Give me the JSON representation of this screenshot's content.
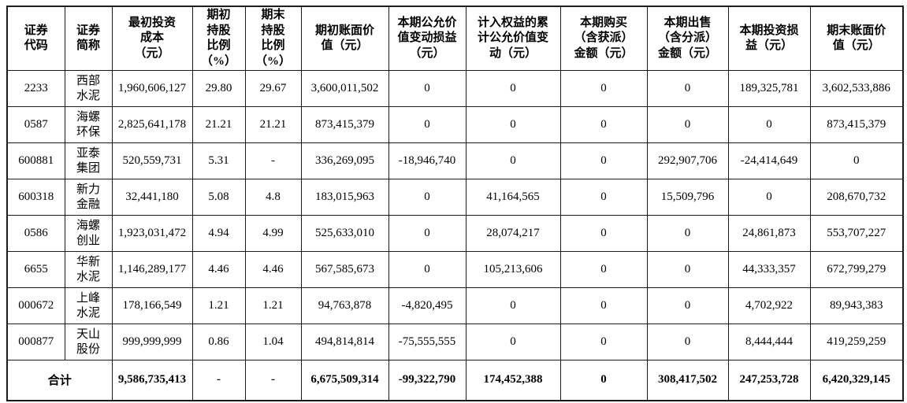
{
  "table": {
    "columns": [
      {
        "label": "证券\n代码"
      },
      {
        "label": "证券\n简称"
      },
      {
        "label": "最初投资\n成本\n（元）"
      },
      {
        "label": "期初\n持股\n比例\n（%）"
      },
      {
        "label": "期末\n持股\n比例\n（%）"
      },
      {
        "label": "期初账面价\n值（元）"
      },
      {
        "label": "本期公允价\n值变动损益\n（元）"
      },
      {
        "label": "计入权益的累\n计公允价值变\n动（元）"
      },
      {
        "label": "本期购买\n（含获派）\n金额（元）"
      },
      {
        "label": "本期出售\n（含分派）\n金额（元）"
      },
      {
        "label": "本期投资损\n益（元）"
      },
      {
        "label": "期末账面价\n值（元）"
      }
    ],
    "rows": [
      {
        "code": "2233",
        "name": "西部\n水泥",
        "values": [
          "1,960,606,127",
          "29.80",
          "29.67",
          "3,600,011,502",
          "0",
          "0",
          "0",
          "0",
          "189,325,781",
          "3,602,533,886"
        ]
      },
      {
        "code": "0587",
        "name": "海螺\n环保",
        "values": [
          "2,825,641,178",
          "21.21",
          "21.21",
          "873,415,379",
          "0",
          "0",
          "0",
          "0",
          "0",
          "873,415,379"
        ]
      },
      {
        "code": "600881",
        "name": "亚泰\n集团",
        "values": [
          "520,559,731",
          "5.31",
          "-",
          "336,269,095",
          "-18,946,740",
          "0",
          "0",
          "292,907,706",
          "-24,414,649",
          "0"
        ]
      },
      {
        "code": "600318",
        "name": "新力\n金融",
        "values": [
          "32,441,180",
          "5.08",
          "4.8",
          "183,015,963",
          "0",
          "41,164,565",
          "0",
          "15,509,796",
          "0",
          "208,670,732"
        ]
      },
      {
        "code": "0586",
        "name": "海螺\n创业",
        "values": [
          "1,923,031,472",
          "4.94",
          "4.99",
          "525,633,010",
          "0",
          "28,074,217",
          "0",
          "0",
          "24,861,873",
          "553,707,227"
        ]
      },
      {
        "code": "6655",
        "name": "华新\n水泥",
        "values": [
          "1,146,289,177",
          "4.46",
          "4.46",
          "567,585,673",
          "0",
          "105,213,606",
          "0",
          "0",
          "44,333,357",
          "672,799,279"
        ]
      },
      {
        "code": "000672",
        "name": "上峰\n水泥",
        "values": [
          "178,166,549",
          "1.21",
          "1.21",
          "94,763,878",
          "-4,820,495",
          "0",
          "0",
          "0",
          "4,702,922",
          "89,943,383"
        ]
      },
      {
        "code": "000877",
        "name": "天山\n股份",
        "values": [
          "999,999,999",
          "0.86",
          "1.04",
          "494,814,814",
          "-75,555,555",
          "0",
          "0",
          "0",
          "8,444,444",
          "419,259,259"
        ]
      }
    ],
    "total": {
      "label": "合计",
      "values": [
        "9,586,735,413",
        "-",
        "-",
        "6,675,509,314",
        "-99,322,790",
        "174,452,388",
        "0",
        "308,417,502",
        "247,253,728",
        "6,420,329,145"
      ]
    }
  }
}
